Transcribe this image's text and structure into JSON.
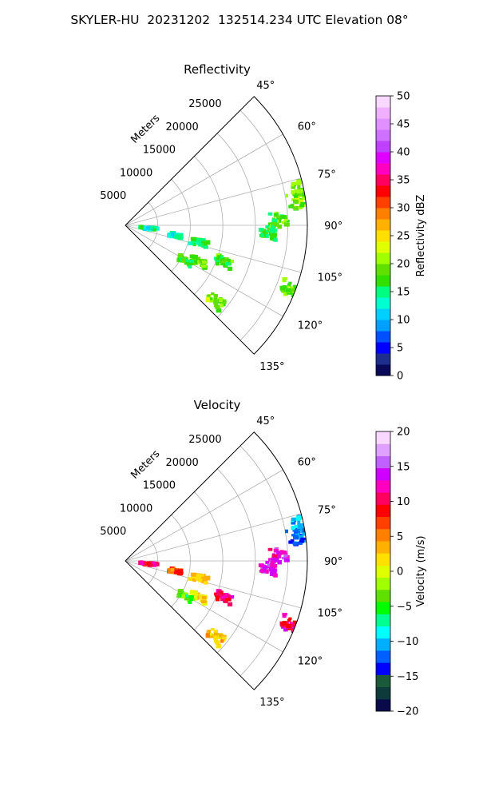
{
  "suptitle": "SKYLER-HU  20231202  132514.234 UTC Elevation 08°",
  "chart_data": [
    {
      "type": "heatmap",
      "title": "Reflectivity",
      "projection": "polar sector",
      "range_label": "Meters",
      "range_ticks": [
        5000,
        10000,
        15000,
        20000,
        25000
      ],
      "range_tick_labels": [
        "5000",
        "10000",
        "15000",
        "20000",
        "25000"
      ],
      "rlim": [
        0,
        28000
      ],
      "azimuth_ticks": [
        45,
        60,
        75,
        90,
        105,
        120,
        135
      ],
      "azimuth_tick_labels": [
        "45°",
        "60°",
        "75°",
        "90°",
        "105°",
        "120°",
        "135°"
      ],
      "azimuth_range": [
        45,
        135
      ],
      "grid": true,
      "colorbar": {
        "label": "Reflectivity dBZ",
        "range": [
          0,
          50
        ],
        "ticks": [
          0,
          5,
          10,
          15,
          20,
          25,
          30,
          35,
          40,
          45,
          50
        ],
        "tick_labels": [
          "0",
          "5",
          "10",
          "15",
          "20",
          "25",
          "30",
          "35",
          "40",
          "45",
          "50"
        ]
      },
      "echoes": [
        {
          "azimuth": 88,
          "range": 23500,
          "value": 18
        },
        {
          "azimuth": 82,
          "range": 26500,
          "value": 20
        },
        {
          "azimuth": 78,
          "range": 27500,
          "value": 19
        },
        {
          "azimuth": 93,
          "range": 22000,
          "value": 17
        },
        {
          "azimuth": 103,
          "range": 11500,
          "value": 16
        },
        {
          "azimuth": 101,
          "range": 8000,
          "value": 13
        },
        {
          "azimuth": 110,
          "range": 16000,
          "value": 18
        },
        {
          "azimuth": 116,
          "range": 12500,
          "value": 19
        },
        {
          "azimuth": 121,
          "range": 10500,
          "value": 17
        },
        {
          "azimuth": 130,
          "range": 18000,
          "value": 20
        },
        {
          "azimuth": 111,
          "range": 27000,
          "value": 19
        },
        {
          "azimuth": 96,
          "range": 3500,
          "value": 14
        }
      ],
      "colors": [
        "#0a0a5a",
        "#1d2e8c",
        "#0000ff",
        "#0050ff",
        "#00a0ff",
        "#00d0ff",
        "#00ffd0",
        "#00ff80",
        "#30e000",
        "#60e000",
        "#a0ff00",
        "#e0ff00",
        "#ffe000",
        "#ffb000",
        "#ff8000",
        "#ff4000",
        "#ff0000",
        "#ff0060",
        "#ff00c0",
        "#e000ff",
        "#c040ff",
        "#d070ff",
        "#e090ff",
        "#f0b0ff",
        "#f8d8ff"
      ]
    },
    {
      "type": "heatmap",
      "title": "Velocity",
      "projection": "polar sector",
      "range_label": "Meters",
      "range_ticks": [
        5000,
        10000,
        15000,
        20000,
        25000
      ],
      "range_tick_labels": [
        "5000",
        "10000",
        "15000",
        "20000",
        "25000"
      ],
      "rlim": [
        0,
        28000
      ],
      "azimuth_ticks": [
        45,
        60,
        75,
        90,
        105,
        120,
        135
      ],
      "azimuth_tick_labels": [
        "45°",
        "60°",
        "75°",
        "90°",
        "105°",
        "120°",
        "135°"
      ],
      "azimuth_range": [
        45,
        135
      ],
      "grid": true,
      "colorbar": {
        "label": "Velocity (m/s)",
        "range": [
          -20,
          20
        ],
        "ticks": [
          -20,
          -15,
          -10,
          -5,
          0,
          5,
          10,
          15,
          20
        ],
        "tick_labels": [
          "−20",
          "−15",
          "−10",
          "−5",
          "0",
          "5",
          "10",
          "15",
          "20"
        ]
      },
      "echoes": [
        {
          "azimuth": 88,
          "range": 23500,
          "value": 13
        },
        {
          "azimuth": 82,
          "range": 26500,
          "value": -12
        },
        {
          "azimuth": 78,
          "range": 27500,
          "value": -11
        },
        {
          "azimuth": 93,
          "range": 22000,
          "value": 14
        },
        {
          "azimuth": 103,
          "range": 11500,
          "value": 3
        },
        {
          "azimuth": 101,
          "range": 8000,
          "value": 6
        },
        {
          "azimuth": 110,
          "range": 16000,
          "value": 11
        },
        {
          "azimuth": 116,
          "range": 12500,
          "value": 2
        },
        {
          "azimuth": 121,
          "range": 10500,
          "value": -4
        },
        {
          "azimuth": 130,
          "range": 18000,
          "value": 3
        },
        {
          "azimuth": 111,
          "range": 27000,
          "value": 11
        },
        {
          "azimuth": 96,
          "range": 3500,
          "value": 10
        }
      ],
      "colors": [
        "#0a0a4a",
        "#0d3b3b",
        "#1a5a3a",
        "#0000ff",
        "#0060ff",
        "#00b0ff",
        "#00ffff",
        "#00ff90",
        "#00ff00",
        "#60e000",
        "#a0ff00",
        "#e0ff00",
        "#ffe000",
        "#ffb000",
        "#ff8000",
        "#ff4000",
        "#ff0000",
        "#ff0060",
        "#ff00c0",
        "#d000ff",
        "#c060ff",
        "#e0a0ff",
        "#f8d8ff"
      ]
    }
  ]
}
